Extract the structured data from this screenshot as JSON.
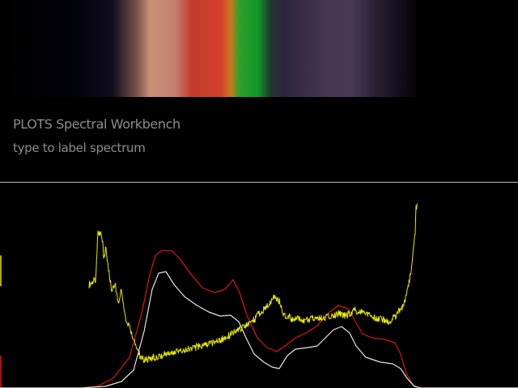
{
  "app": {
    "title": "PLOTS Spectral Workbench",
    "subtitle": "type to label spectrum"
  },
  "colors": {
    "background": "#000000",
    "divider": "#bdbdbd",
    "label_text": "#8d8d8d",
    "trace_red": "#e01414",
    "trace_white": "#e6e6e6",
    "trace_yellow": "#e8e800"
  },
  "spectrum_strip": {
    "bands": [
      {
        "at": 0.0,
        "color": "#000000"
      },
      {
        "at": 0.18,
        "color": "#03030a"
      },
      {
        "at": 0.27,
        "color": "#100c1c"
      },
      {
        "at": 0.33,
        "color": "#7a5448"
      },
      {
        "at": 0.36,
        "color": "#c99078"
      },
      {
        "at": 0.42,
        "color": "#c58070"
      },
      {
        "at": 0.46,
        "color": "#c33c2c"
      },
      {
        "at": 0.53,
        "color": "#d3402c"
      },
      {
        "at": 0.555,
        "color": "#c8781c"
      },
      {
        "at": 0.575,
        "color": "#2fa02a"
      },
      {
        "at": 0.62,
        "color": "#109628"
      },
      {
        "at": 0.65,
        "color": "#1e3a2a"
      },
      {
        "at": 0.68,
        "color": "#2c2442"
      },
      {
        "at": 0.78,
        "color": "#463650"
      },
      {
        "at": 0.84,
        "color": "#4a3a58"
      },
      {
        "at": 0.9,
        "color": "#2a2236"
      },
      {
        "at": 0.97,
        "color": "#100c16"
      },
      {
        "at": 1.0,
        "color": "#050407"
      }
    ]
  },
  "chart_data": {
    "type": "line",
    "title": "",
    "xlabel": "",
    "ylabel": "",
    "xlim": [
      0,
      640
    ],
    "ylim": [
      0,
      254
    ],
    "series": [
      {
        "color": "#e01414",
        "points": [
          [
            0,
            0
          ],
          [
            100,
            0
          ],
          [
            120,
            2
          ],
          [
            140,
            12
          ],
          [
            160,
            38
          ],
          [
            175,
            92
          ],
          [
            185,
            140
          ],
          [
            192,
            164
          ],
          [
            200,
            170
          ],
          [
            212,
            170
          ],
          [
            222,
            160
          ],
          [
            235,
            142
          ],
          [
            250,
            124
          ],
          [
            265,
            118
          ],
          [
            278,
            122
          ],
          [
            288,
            134
          ],
          [
            296,
            118
          ],
          [
            305,
            90
          ],
          [
            318,
            62
          ],
          [
            330,
            50
          ],
          [
            342,
            45
          ],
          [
            352,
            52
          ],
          [
            365,
            62
          ],
          [
            378,
            68
          ],
          [
            392,
            77
          ],
          [
            405,
            92
          ],
          [
            418,
            102
          ],
          [
            430,
            98
          ],
          [
            438,
            84
          ],
          [
            448,
            67
          ],
          [
            460,
            62
          ],
          [
            475,
            60
          ],
          [
            488,
            56
          ],
          [
            495,
            42
          ],
          [
            502,
            18
          ],
          [
            510,
            4
          ],
          [
            518,
            0
          ],
          [
            640,
            0
          ]
        ]
      },
      {
        "color": "#e6e6e6",
        "points": [
          [
            0,
            0
          ],
          [
            100,
            0
          ],
          [
            130,
            2
          ],
          [
            150,
            8
          ],
          [
            165,
            22
          ],
          [
            178,
            70
          ],
          [
            188,
            122
          ],
          [
            196,
            142
          ],
          [
            205,
            144
          ],
          [
            215,
            128
          ],
          [
            228,
            113
          ],
          [
            242,
            103
          ],
          [
            258,
            94
          ],
          [
            272,
            89
          ],
          [
            285,
            90
          ],
          [
            295,
            82
          ],
          [
            304,
            62
          ],
          [
            314,
            42
          ],
          [
            326,
            32
          ],
          [
            336,
            26
          ],
          [
            345,
            24
          ],
          [
            355,
            40
          ],
          [
            365,
            48
          ],
          [
            380,
            50
          ],
          [
            392,
            52
          ],
          [
            402,
            62
          ],
          [
            412,
            72
          ],
          [
            422,
            76
          ],
          [
            432,
            68
          ],
          [
            440,
            52
          ],
          [
            452,
            38
          ],
          [
            470,
            32
          ],
          [
            485,
            30
          ],
          [
            495,
            24
          ],
          [
            503,
            12
          ],
          [
            512,
            2
          ],
          [
            520,
            0
          ],
          [
            640,
            0
          ]
        ]
      },
      {
        "color": "#e8e800",
        "noisy": true,
        "points": [
          [
            110,
            128
          ],
          [
            118,
            134
          ],
          [
            121,
            190
          ],
          [
            124,
            192
          ],
          [
            127,
            180
          ],
          [
            128,
            158
          ],
          [
            131,
            174
          ],
          [
            134,
            145
          ],
          [
            138,
            122
          ],
          [
            142,
            130
          ],
          [
            146,
            106
          ],
          [
            150,
            120
          ],
          [
            155,
            84
          ],
          [
            162,
            70
          ],
          [
            168,
            52
          ],
          [
            174,
            38
          ],
          [
            180,
            34
          ],
          [
            190,
            38
          ],
          [
            205,
            42
          ],
          [
            220,
            46
          ],
          [
            240,
            50
          ],
          [
            255,
            54
          ],
          [
            270,
            58
          ],
          [
            285,
            66
          ],
          [
            298,
            74
          ],
          [
            312,
            82
          ],
          [
            322,
            94
          ],
          [
            332,
            102
          ],
          [
            338,
            115
          ],
          [
            344,
            110
          ],
          [
            350,
            92
          ],
          [
            360,
            86
          ],
          [
            375,
            84
          ],
          [
            390,
            86
          ],
          [
            405,
            88
          ],
          [
            418,
            92
          ],
          [
            428,
            90
          ],
          [
            438,
            96
          ],
          [
            448,
            94
          ],
          [
            460,
            88
          ],
          [
            470,
            86
          ],
          [
            480,
            82
          ],
          [
            490,
            90
          ],
          [
            500,
            106
          ],
          [
            506,
            132
          ],
          [
            510,
            162
          ],
          [
            513,
            194
          ],
          [
            514,
            222
          ],
          [
            516,
            228
          ]
        ]
      }
    ]
  }
}
